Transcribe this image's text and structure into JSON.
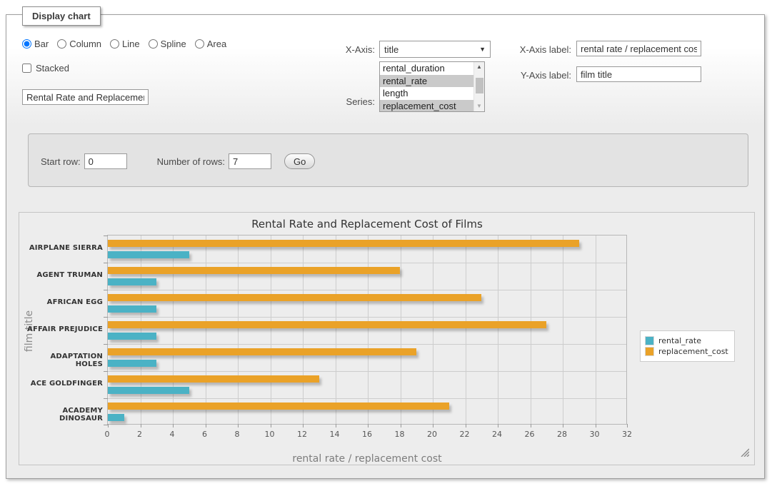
{
  "window": {
    "legend": "Display chart"
  },
  "controls": {
    "chart_types": {
      "options": [
        "Bar",
        "Column",
        "Line",
        "Spline",
        "Area"
      ],
      "selected": "Bar"
    },
    "stacked": {
      "label": "Stacked",
      "checked": false
    },
    "title_input": {
      "value": "Rental Rate and Replacemer"
    },
    "x_axis": {
      "label": "X-Axis:",
      "selected": "title"
    },
    "series_select": {
      "label": "Series:",
      "options": [
        {
          "label": "rental_duration",
          "selected": false
        },
        {
          "label": "rental_rate",
          "selected": true
        },
        {
          "label": "length",
          "selected": false
        },
        {
          "label": "replacement_cost",
          "selected": true
        }
      ]
    },
    "x_axis_label": {
      "label": "X-Axis label:",
      "value": "rental rate / replacement cost"
    },
    "y_axis_label": {
      "label": "Y-Axis label:",
      "value": "film title"
    }
  },
  "rows_panel": {
    "start_row": {
      "label": "Start row:",
      "value": "0"
    },
    "number_of_rows": {
      "label": "Number of rows:",
      "value": "7"
    },
    "go_label": "Go"
  },
  "icons": {
    "dropdown_arrow": "▼",
    "scroll_up": "▲",
    "scroll_down": "▼"
  },
  "chart_data": {
    "type": "bar",
    "orientation": "horizontal",
    "title": "Rental Rate and Replacement Cost of Films",
    "xlabel": "rental rate / replacement cost",
    "ylabel": "film title",
    "categories": [
      "AIRPLANE SIERRA",
      "AGENT TRUMAN",
      "AFRICAN EGG",
      "AFFAIR PREJUDICE",
      "ADAPTATION HOLES",
      "ACE GOLDFINGER",
      "ACADEMY DINOSAUR"
    ],
    "series": [
      {
        "name": "rental_rate",
        "color": "#4bb2c5",
        "values": [
          4.99,
          2.99,
          2.99,
          2.99,
          2.99,
          4.99,
          0.99
        ]
      },
      {
        "name": "replacement_cost",
        "color": "#eaa228",
        "values": [
          28.99,
          17.99,
          22.99,
          26.99,
          18.99,
          12.99,
          20.99
        ]
      }
    ],
    "xlim": [
      0,
      32
    ],
    "xticks": [
      0,
      2,
      4,
      6,
      8,
      10,
      12,
      14,
      16,
      18,
      20,
      22,
      24,
      26,
      28,
      30,
      32
    ],
    "grid": true,
    "legend_position": "right",
    "background": "#ededed"
  }
}
